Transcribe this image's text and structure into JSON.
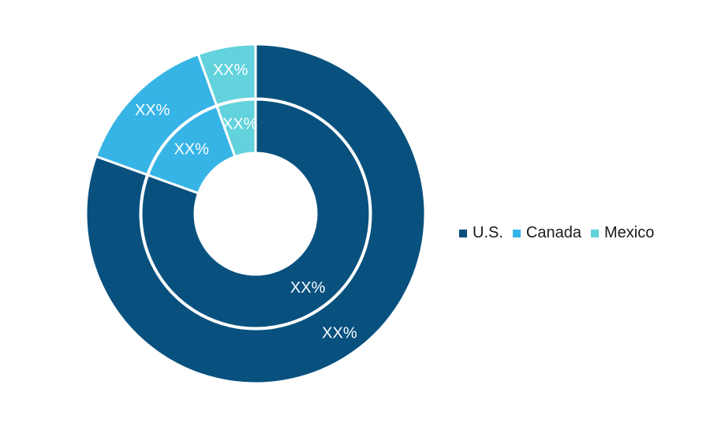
{
  "chart_data": {
    "type": "donut",
    "categories": [
      "U.S.",
      "Canada",
      "Mexico"
    ],
    "colors": [
      "#08517f",
      "#36b4e6",
      "#62d2dc"
    ],
    "series": [
      {
        "ring": "outer",
        "values": [
          80.5,
          14.0,
          5.5
        ],
        "labels": [
          "XX%",
          "XX%",
          "XX%"
        ]
      },
      {
        "ring": "inner",
        "values": [
          80.5,
          14.0,
          5.5
        ],
        "labels": [
          "XX%",
          "XX%",
          "XX%"
        ]
      }
    ],
    "legend": {
      "position": "right",
      "items": [
        "U.S.",
        "Canada",
        "Mexico"
      ]
    }
  }
}
